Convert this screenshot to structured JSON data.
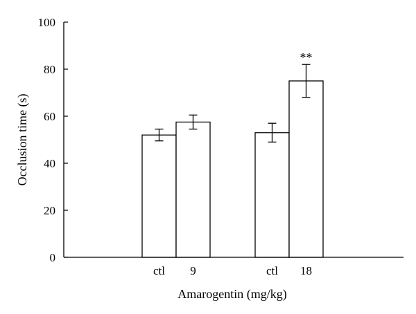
{
  "chart_data": {
    "type": "bar",
    "title": "",
    "xlabel": "Amarogentin (mg/kg)",
    "ylabel": "Occlusion time (s)",
    "ylim": [
      0,
      100
    ],
    "yticks": [
      0,
      20,
      40,
      60,
      80,
      100
    ],
    "grid": false,
    "legend": "none",
    "bar_fill": "#ffffff",
    "stroke_color": "#000000",
    "categories": [
      "ctl",
      "9",
      "ctl",
      "18"
    ],
    "groups": [
      [
        "ctl",
        "9"
      ],
      [
        "ctl",
        "18"
      ]
    ],
    "values": [
      52,
      57.5,
      53,
      75
    ],
    "errors": [
      2.5,
      3,
      4,
      7
    ],
    "annotations": [
      "",
      "",
      "",
      "**"
    ]
  }
}
